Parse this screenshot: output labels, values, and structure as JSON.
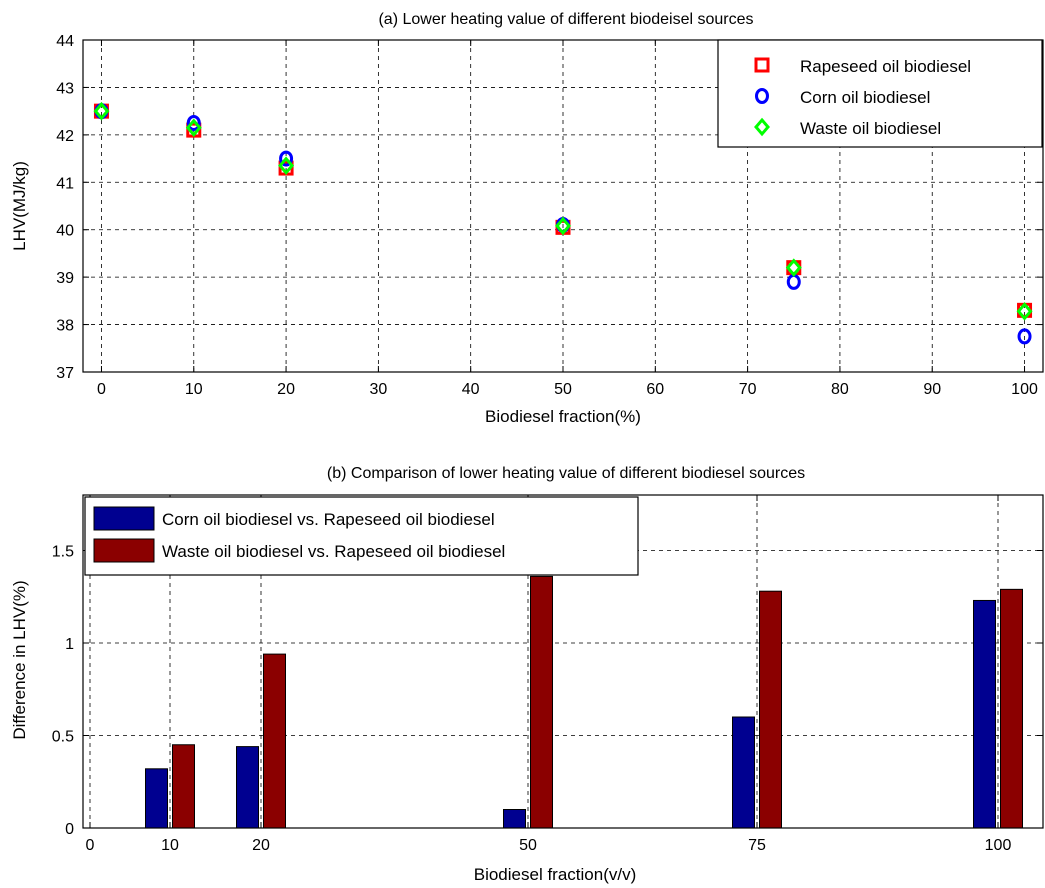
{
  "chart_data": [
    {
      "type": "scatter",
      "title": "(a) Lower heating value of different biodeisel sources",
      "xlabel": "Biodiesel fraction(%)",
      "ylabel": "LHV(MJ/kg)",
      "xlim": [
        -2,
        102
      ],
      "ylim": [
        37,
        44
      ],
      "xticks": [
        0,
        10,
        20,
        30,
        40,
        50,
        60,
        70,
        80,
        90,
        100
      ],
      "yticks": [
        37,
        38,
        39,
        40,
        41,
        42,
        43,
        44
      ],
      "grid": true,
      "legend_position": "top-right",
      "series": [
        {
          "name": "Rapeseed oil biodiesel",
          "marker": "square",
          "color": "#ff0000",
          "x": [
            0,
            10,
            20,
            50,
            75,
            100
          ],
          "y": [
            42.5,
            42.1,
            41.3,
            40.05,
            39.2,
            38.3
          ]
        },
        {
          "name": "Corn oil biodiesel",
          "marker": "circle",
          "color": "#0000ff",
          "x": [
            0,
            10,
            20,
            50,
            75,
            100
          ],
          "y": [
            42.5,
            42.25,
            41.5,
            40.1,
            38.9,
            37.75
          ]
        },
        {
          "name": "Waste oil biodiesel",
          "marker": "diamond",
          "color": "#00ff00",
          "x": [
            0,
            10,
            20,
            50,
            75,
            100
          ],
          "y": [
            42.5,
            42.15,
            41.35,
            40.08,
            39.2,
            38.28
          ]
        }
      ]
    },
    {
      "type": "bar",
      "title": "(b) Comparison of lower heating value of different biodiesel sources",
      "xlabel": "Biodiesel fraction(v/v)",
      "ylabel": "Difference in LHV(%)",
      "categories": [
        "0",
        "10",
        "20",
        "50",
        "75",
        "100"
      ],
      "ylim": [
        0,
        1.8
      ],
      "yticks": [
        0,
        0.5,
        1,
        1.5
      ],
      "ytick_labels": [
        "0",
        "0.5",
        "1",
        "1.5"
      ],
      "grid": true,
      "legend_position": "top-left",
      "series": [
        {
          "name": "Corn oil biodiesel vs. Rapeseed oil biodiesel",
          "color": "#000090",
          "values": [
            0,
            0.32,
            0.44,
            0.1,
            0.6,
            1.23
          ]
        },
        {
          "name": "Waste oil biodiesel vs. Rapeseed oil biodiesel",
          "color": "#8b0000",
          "values": [
            0,
            0.45,
            0.94,
            1.36,
            1.28,
            1.29
          ]
        }
      ]
    }
  ]
}
